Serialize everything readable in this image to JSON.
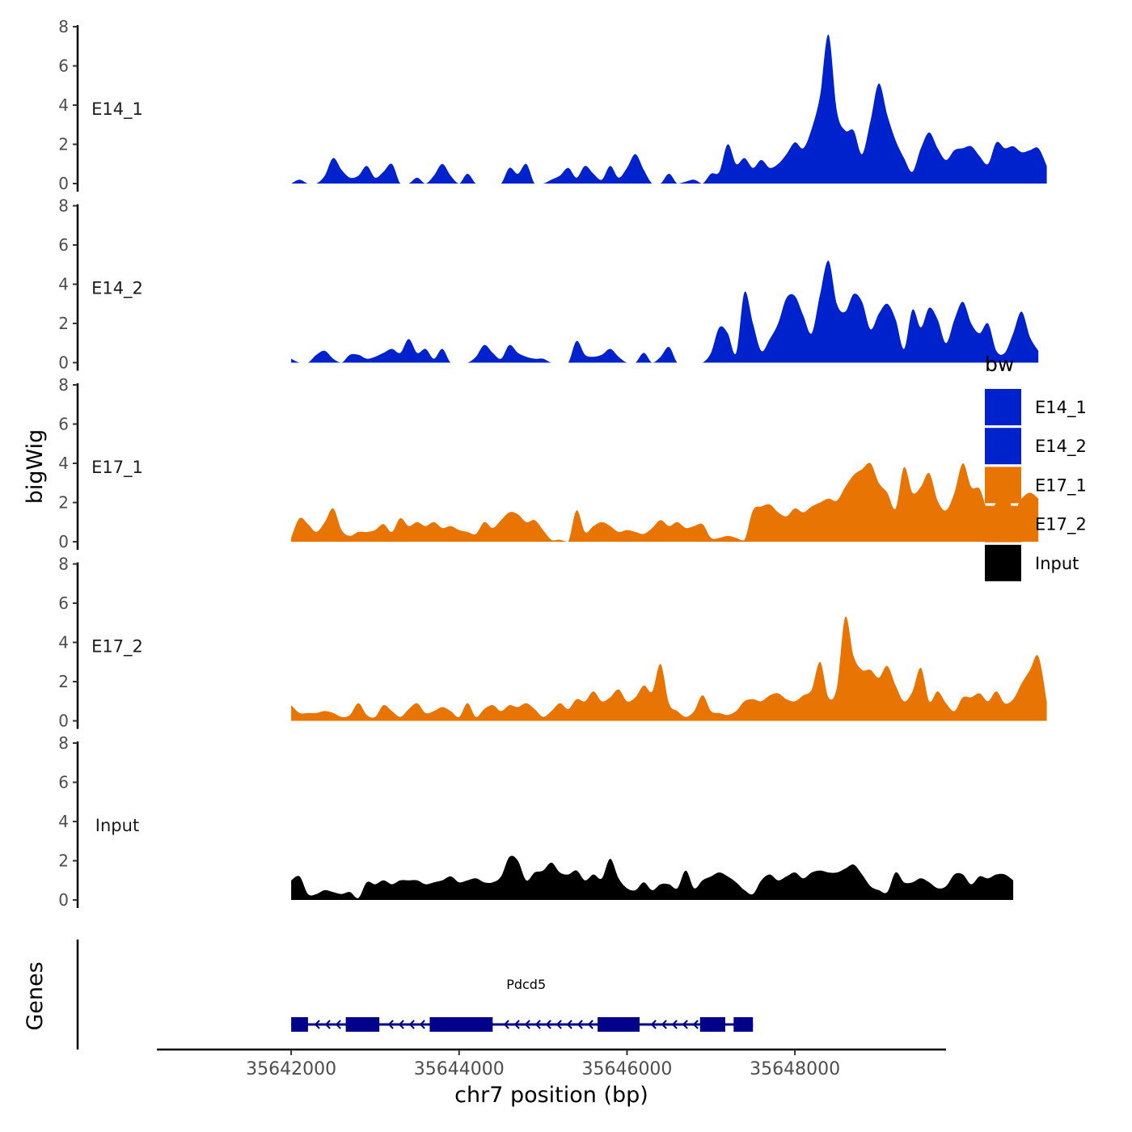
{
  "chart_data": {
    "type": "area",
    "chromosome": "chr7",
    "xlabel": "chr7 position (bp)",
    "ylabel": "bigWig",
    "genes_label": "Genes",
    "xlim": [
      35640400,
      35649800
    ],
    "x_ticks": [
      35642000,
      35644000,
      35646000,
      35648000
    ],
    "x_tick_labels": [
      "35642000",
      "35644000",
      "35646000",
      "35648000"
    ],
    "ylim": [
      0,
      8
    ],
    "y_ticks": [
      0,
      2,
      4,
      6,
      8
    ],
    "y_tick_labels": [
      "0",
      "2",
      "4",
      "6",
      "8"
    ],
    "legend": {
      "title": "bw",
      "entries": [
        {
          "label": "E14_1",
          "color": "#0022cc"
        },
        {
          "label": "E14_2",
          "color": "#0022cc"
        },
        {
          "label": "E17_1",
          "color": "#e87503"
        },
        {
          "label": "E17_2",
          "color": "#e87503"
        },
        {
          "label": "Input",
          "color": "#000000"
        }
      ]
    },
    "series": [
      {
        "name": "E14_1",
        "color": "#0022cc",
        "x_start": 35642000,
        "x_step": 100,
        "values": [
          0,
          0.2,
          0,
          0,
          0.4,
          1.3,
          0.7,
          0.3,
          0.4,
          0.9,
          0.3,
          0.6,
          1.0,
          0,
          0,
          0.3,
          0,
          0.4,
          1.0,
          0.4,
          0,
          0.5,
          0,
          0,
          0,
          0,
          0.8,
          0.5,
          1.0,
          0,
          0,
          0.2,
          0.4,
          0.8,
          0.3,
          0.9,
          0.5,
          0.2,
          0.9,
          0.3,
          0.8,
          1.5,
          0.7,
          0,
          0,
          0.5,
          0,
          0.1,
          0.2,
          0,
          0.5,
          0.6,
          2.0,
          1.0,
          1.3,
          0.8,
          1.2,
          0.8,
          1.0,
          1.5,
          2.1,
          1.8,
          2.8,
          4.5,
          7.6,
          3.7,
          2.7,
          2.7,
          1.5,
          3.2,
          5.1,
          3.5,
          2.2,
          1.3,
          0.6,
          1.8,
          2.6,
          1.8,
          1.2,
          1.7,
          1.8,
          1.9,
          1.4,
          1.0,
          2.1,
          1.8,
          1.9,
          1.6,
          1.7,
          1.8,
          0.9
        ]
      },
      {
        "name": "E14_2",
        "color": "#0022cc",
        "x_start": 35642000,
        "x_step": 100,
        "values": [
          0.2,
          0,
          0,
          0.4,
          0.6,
          0.2,
          0,
          0.4,
          0.4,
          0.2,
          0.3,
          0.5,
          0.7,
          0.5,
          1.2,
          0.5,
          0.7,
          0.2,
          0.7,
          0,
          0,
          0,
          0.3,
          0.9,
          0.5,
          0.2,
          0.9,
          0.5,
          0.3,
          0.2,
          0.2,
          0,
          0,
          0,
          1.1,
          0.4,
          0.3,
          0.4,
          0.7,
          0.3,
          0,
          0,
          0.5,
          0,
          0.3,
          0.8,
          0,
          0,
          0,
          0,
          0.5,
          1.8,
          1.5,
          0.5,
          3.6,
          2.0,
          0.6,
          1.2,
          2.0,
          3.3,
          3.4,
          2.4,
          1.5,
          3.5,
          5.2,
          3.0,
          2.6,
          3.5,
          3.1,
          1.7,
          2.5,
          3.0,
          2.2,
          0.7,
          2.7,
          1.8,
          2.8,
          2.2,
          1.0,
          2.2,
          3.1,
          2.0,
          1.5,
          2.0,
          0.6,
          0.5,
          1.5,
          2.6,
          1.3,
          0.6
        ]
      },
      {
        "name": "E17_1",
        "color": "#e87503",
        "x_start": 35642000,
        "x_step": 100,
        "values": [
          0.2,
          1.2,
          0.9,
          0.5,
          1.0,
          1.7,
          0.6,
          0.3,
          0.5,
          0.5,
          0.6,
          0.9,
          0.5,
          1.2,
          0.8,
          1.0,
          0.8,
          1.0,
          0.7,
          0.8,
          0.6,
          0.5,
          0.4,
          1.0,
          0.7,
          1.1,
          1.5,
          1.4,
          1.0,
          1.1,
          0.6,
          0.1,
          0.1,
          0,
          1.6,
          0.5,
          0.8,
          1.0,
          0.8,
          0.5,
          0.6,
          0.5,
          0.4,
          0.7,
          1.1,
          0.8,
          1.0,
          0.7,
          0.8,
          0.9,
          0.2,
          0.2,
          0.3,
          0.2,
          0.1,
          1.6,
          1.8,
          1.9,
          1.5,
          1.3,
          1.7,
          1.5,
          1.8,
          2.0,
          2.2,
          2.1,
          2.8,
          3.4,
          3.7,
          4.0,
          3.0,
          2.5,
          1.7,
          3.8,
          2.5,
          2.8,
          3.5,
          2.1,
          1.6,
          2.5,
          4.0,
          2.8,
          2.7,
          1.6,
          2.0,
          2.9,
          1.6,
          2.2,
          2.5,
          2.2
        ]
      },
      {
        "name": "E17_2",
        "color": "#e87503",
        "x_start": 35642000,
        "x_step": 100,
        "values": [
          0.8,
          0.4,
          0.4,
          0.4,
          0.5,
          0.4,
          0.2,
          0.3,
          0.9,
          0.3,
          0.2,
          0.8,
          0.5,
          0.2,
          0.6,
          0.9,
          0.4,
          0.5,
          0.7,
          0.5,
          0.2,
          0.9,
          0.2,
          0.6,
          0.8,
          0.5,
          0.8,
          0.7,
          0.9,
          0.6,
          0.2,
          0.5,
          0.9,
          0.6,
          1.1,
          1.0,
          1.5,
          1.0,
          1.2,
          1.6,
          1.0,
          1.2,
          1.8,
          1.5,
          2.9,
          0.9,
          0.5,
          0.2,
          0.5,
          1.3,
          0.5,
          0.4,
          0.3,
          0.5,
          1.0,
          1.1,
          1.0,
          1.3,
          1.4,
          1.1,
          1.0,
          1.3,
          1.6,
          3.0,
          1.2,
          1.7,
          5.3,
          3.3,
          2.6,
          2.6,
          2.2,
          2.8,
          1.8,
          1.0,
          1.5,
          2.7,
          1.0,
          1.5,
          0.9,
          0.5,
          1.2,
          1.2,
          1.4,
          1.0,
          1.5,
          0.9,
          1.1,
          1.9,
          2.6,
          3.3,
          1.0
        ]
      },
      {
        "name": "Input",
        "color": "#000000",
        "x_start": 35642000,
        "x_step": 100,
        "values": [
          1.0,
          1.2,
          0.3,
          0.3,
          0.5,
          0.4,
          0.3,
          0.4,
          0.1,
          0.9,
          0.8,
          1.0,
          0.8,
          1.0,
          1.0,
          1.0,
          0.8,
          0.9,
          1.0,
          1.2,
          0.9,
          1.0,
          1.1,
          0.9,
          0.9,
          1.2,
          2.2,
          2.0,
          1.0,
          1.4,
          1.5,
          1.9,
          1.4,
          1.3,
          1.5,
          1.0,
          1.3,
          1.1,
          2.1,
          1.1,
          0.6,
          0.5,
          0.9,
          0.5,
          0.8,
          0.8,
          0.6,
          1.5,
          0.6,
          1.0,
          1.2,
          1.4,
          1.2,
          0.9,
          0.5,
          0.3,
          1.0,
          1.3,
          1.0,
          1.2,
          1.4,
          1.1,
          1.4,
          1.5,
          1.4,
          1.4,
          1.6,
          1.8,
          1.3,
          0.7,
          0.5,
          0.4,
          1.4,
          0.9,
          0.9,
          1.1,
          0.9,
          0.6,
          0.7,
          1.3,
          1.3,
          0.8,
          1.2,
          1.1,
          1.3,
          1.3,
          1.0
        ]
      }
    ],
    "genes": [
      {
        "name": "Pdcd5",
        "strand": "-",
        "color": "#00008b",
        "start": 35642000,
        "end": 35647500,
        "exons": [
          [
            35642000,
            35642200
          ],
          [
            35642650,
            35643050
          ],
          [
            35643650,
            35644400
          ],
          [
            35645650,
            35646150
          ],
          [
            35646870,
            35647170
          ],
          [
            35647270,
            35647500
          ]
        ]
      }
    ]
  }
}
